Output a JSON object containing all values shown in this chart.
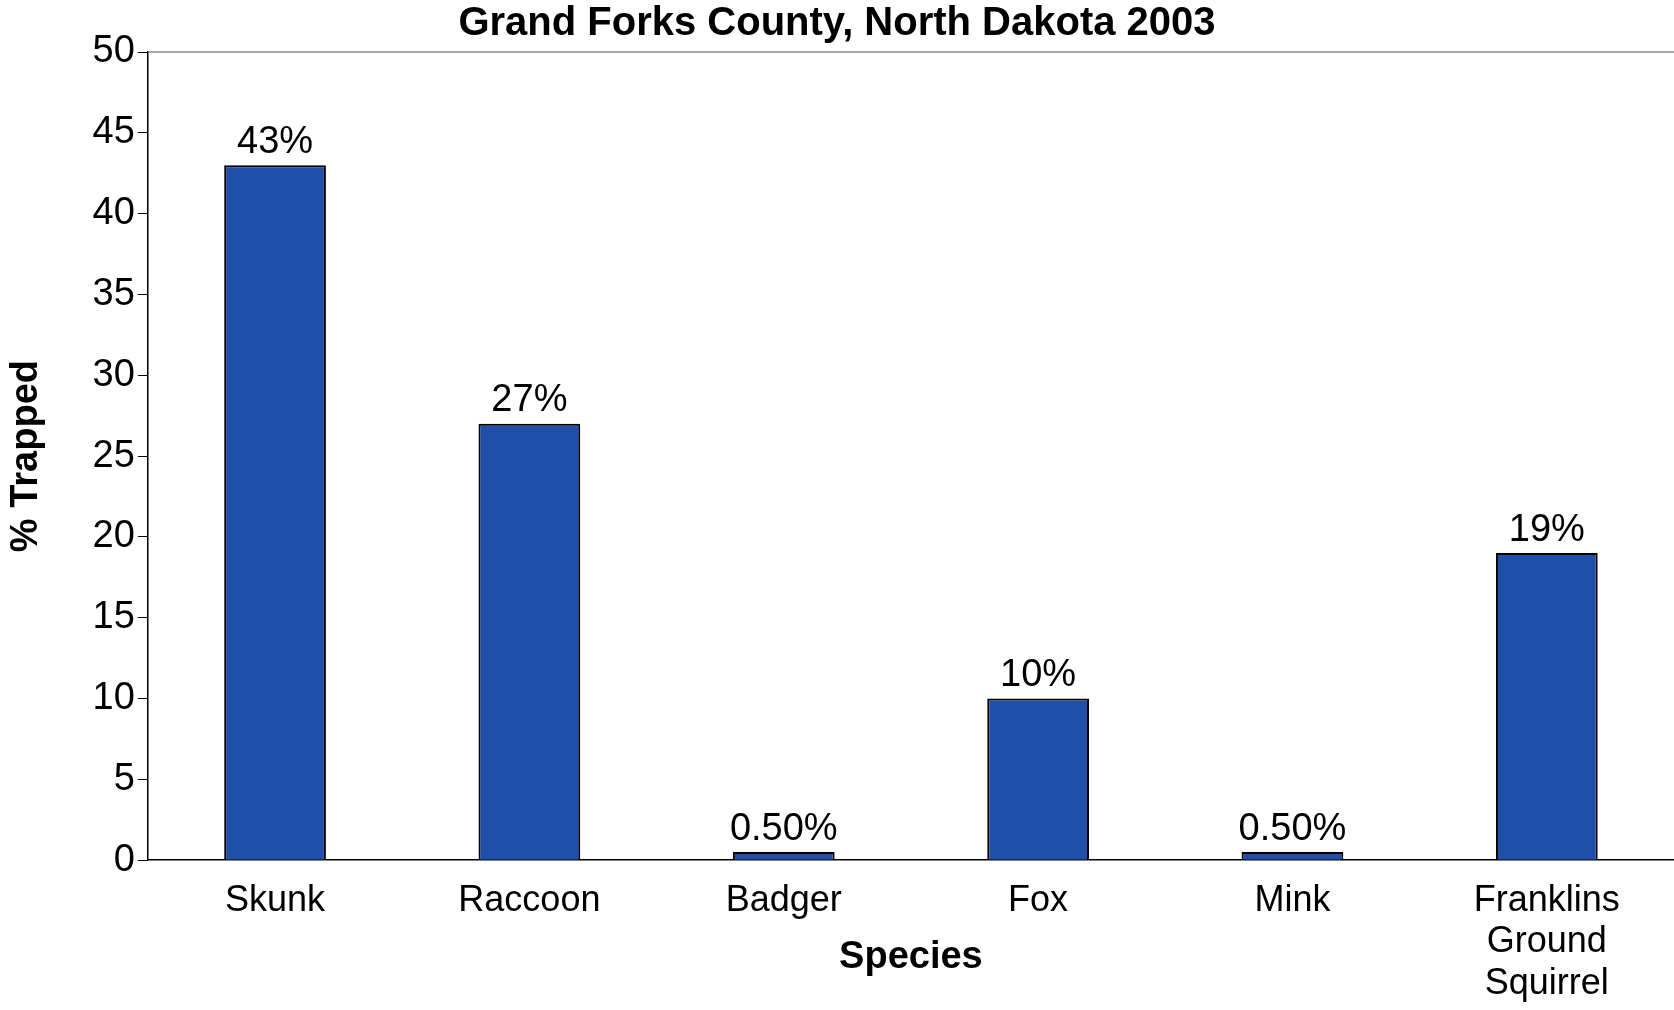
{
  "chart_data": {
    "type": "bar",
    "title": "Grand Forks County, North Dakota 2003",
    "xlabel": "Species",
    "ylabel": "% Trapped",
    "categories": [
      "Skunk",
      "Raccoon",
      "Badger",
      "Fox",
      "Mink",
      "Franklins Ground Squirrel"
    ],
    "values": [
      43,
      27,
      0.5,
      10,
      0.5,
      19
    ],
    "value_labels": [
      "43%",
      "27%",
      "0.50%",
      "10%",
      "0.50%",
      "19%"
    ],
    "color": "#1f4fa8",
    "ylim": [
      0,
      50
    ],
    "yticks": [
      0,
      5,
      10,
      15,
      20,
      25,
      30,
      35,
      40,
      45,
      50
    ],
    "grid": false,
    "legend": false
  }
}
